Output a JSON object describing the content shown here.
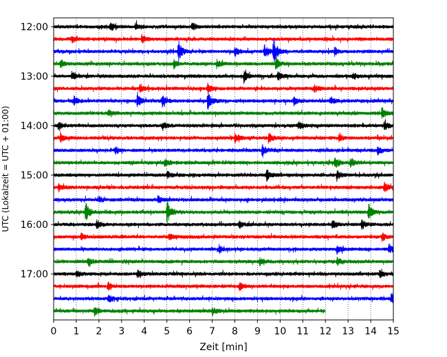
{
  "chart_data": {
    "type": "line",
    "title": "",
    "xlabel": "Zeit  [min]",
    "ylabel": "UTC (Lokalzeit = UTC + 01:00)",
    "xlim": [
      0,
      15
    ],
    "x_ticks": [
      "0",
      "1",
      "2",
      "3",
      "4",
      "5",
      "6",
      "7",
      "8",
      "9",
      "10",
      "11",
      "12",
      "13",
      "14",
      "15"
    ],
    "y_ticks": [
      "12:00",
      "13:00",
      "14:00",
      "15:00",
      "16:00",
      "17:00"
    ],
    "grid": "vertical-dotted",
    "trace_interval_min": 15,
    "trace_colors": [
      "#000000",
      "#ff0000",
      "#0000ff",
      "#008000"
    ],
    "series": [
      {
        "start": "12:00",
        "end_min": 15,
        "color": "#000000",
        "events": [
          [
            2.5,
            0.9
          ],
          [
            3.6,
            0.7
          ],
          [
            6.1,
            0.9
          ]
        ]
      },
      {
        "start": "12:15",
        "end_min": 15,
        "color": "#ff0000",
        "events": [
          [
            0.8,
            0.7
          ],
          [
            3.9,
            0.8
          ]
        ]
      },
      {
        "start": "12:30",
        "end_min": 15,
        "color": "#0000ff",
        "events": [
          [
            5.5,
            2.4
          ],
          [
            8.0,
            1.0
          ],
          [
            9.3,
            1.5
          ],
          [
            9.7,
            3.0
          ],
          [
            12.4,
            0.9
          ]
        ]
      },
      {
        "start": "12:45",
        "end_min": 15,
        "color": "#008000",
        "events": [
          [
            0.3,
            0.9
          ],
          [
            5.3,
            0.9
          ],
          [
            7.2,
            0.8
          ],
          [
            9.8,
            1.3
          ]
        ]
      },
      {
        "start": "13:00",
        "end_min": 15,
        "color": "#000000",
        "events": [
          [
            0.8,
            0.9
          ],
          [
            8.4,
            1.3
          ],
          [
            9.9,
            0.9
          ],
          [
            13.2,
            0.8
          ]
        ]
      },
      {
        "start": "13:15",
        "end_min": 15,
        "color": "#ff0000",
        "events": [
          [
            3.8,
            0.8
          ],
          [
            6.8,
            1.0
          ],
          [
            11.5,
            0.8
          ]
        ]
      },
      {
        "start": "13:30",
        "end_min": 15,
        "color": "#0000ff",
        "events": [
          [
            0.9,
            1.0
          ],
          [
            3.7,
            1.3
          ],
          [
            4.8,
            1.2
          ],
          [
            6.8,
            2.0
          ],
          [
            10.6,
            1.0
          ],
          [
            12.2,
            0.8
          ]
        ]
      },
      {
        "start": "13:45",
        "end_min": 15,
        "color": "#008000",
        "events": [
          [
            2.4,
            0.8
          ],
          [
            14.5,
            1.1
          ]
        ]
      },
      {
        "start": "14:00",
        "end_min": 15,
        "color": "#000000",
        "events": [
          [
            0.2,
            0.8
          ],
          [
            4.8,
            0.9
          ],
          [
            10.8,
            0.8
          ],
          [
            14.6,
            0.9
          ]
        ]
      },
      {
        "start": "14:15",
        "end_min": 15,
        "color": "#ff0000",
        "events": [
          [
            0.3,
            1.0
          ],
          [
            8.0,
            1.1
          ],
          [
            9.5,
            1.0
          ],
          [
            12.6,
            0.8
          ]
        ]
      },
      {
        "start": "14:30",
        "end_min": 15,
        "color": "#0000ff",
        "events": [
          [
            2.7,
            0.8
          ],
          [
            9.2,
            1.2
          ],
          [
            14.3,
            0.8
          ]
        ]
      },
      {
        "start": "14:45",
        "end_min": 15,
        "color": "#008000",
        "events": [
          [
            4.9,
            0.8
          ],
          [
            12.4,
            1.3
          ],
          [
            13.1,
            1.0
          ]
        ]
      },
      {
        "start": "15:00",
        "end_min": 15,
        "color": "#000000",
        "events": [
          [
            5.0,
            0.8
          ],
          [
            9.4,
            1.2
          ],
          [
            12.5,
            0.9
          ]
        ]
      },
      {
        "start": "15:15",
        "end_min": 15,
        "color": "#ff0000",
        "events": [
          [
            0.2,
            0.8
          ],
          [
            14.6,
            1.0
          ]
        ]
      },
      {
        "start": "15:30",
        "end_min": 15,
        "color": "#0000ff",
        "events": [
          [
            2.0,
            0.7
          ],
          [
            4.6,
            0.8
          ]
        ]
      },
      {
        "start": "15:45",
        "end_min": 15,
        "color": "#008000",
        "events": [
          [
            1.4,
            2.0
          ],
          [
            5.0,
            2.5
          ],
          [
            13.9,
            2.2
          ]
        ]
      },
      {
        "start": "16:00",
        "end_min": 15,
        "color": "#000000",
        "events": [
          [
            1.9,
            1.0
          ],
          [
            8.2,
            0.8
          ],
          [
            12.3,
            1.1
          ],
          [
            13.6,
            1.0
          ]
        ]
      },
      {
        "start": "16:15",
        "end_min": 15,
        "color": "#ff0000",
        "events": [
          [
            1.2,
            0.8
          ],
          [
            5.1,
            0.8
          ],
          [
            14.5,
            0.9
          ]
        ]
      },
      {
        "start": "16:30",
        "end_min": 15,
        "color": "#0000ff",
        "events": [
          [
            7.3,
            0.8
          ],
          [
            12.5,
            1.0
          ],
          [
            14.8,
            1.1
          ]
        ]
      },
      {
        "start": "16:45",
        "end_min": 15,
        "color": "#008000",
        "events": [
          [
            1.5,
            1.0
          ],
          [
            9.1,
            0.9
          ],
          [
            12.5,
            0.8
          ]
        ]
      },
      {
        "start": "17:00",
        "end_min": 15,
        "color": "#000000",
        "events": [
          [
            1.0,
            0.8
          ],
          [
            3.7,
            0.9
          ],
          [
            14.4,
            0.9
          ]
        ]
      },
      {
        "start": "17:15",
        "end_min": 15,
        "color": "#ff0000",
        "events": [
          [
            2.4,
            0.8
          ],
          [
            8.2,
            0.8
          ]
        ]
      },
      {
        "start": "17:30",
        "end_min": 15,
        "color": "#0000ff",
        "events": [
          [
            2.4,
            0.9
          ],
          [
            14.9,
            1.2
          ]
        ]
      },
      {
        "start": "17:45",
        "end_min": 12,
        "color": "#008000",
        "events": [
          [
            1.8,
            0.9
          ],
          [
            7.0,
            0.8
          ]
        ]
      }
    ]
  }
}
